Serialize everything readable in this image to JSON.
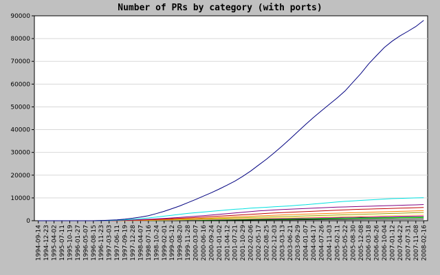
{
  "chart_data": {
    "type": "line",
    "title": "Number of PRs by category (with ports)",
    "xlabel": "",
    "ylabel": "",
    "ylim": [
      0,
      90000
    ],
    "yticks": [
      0,
      10000,
      20000,
      30000,
      40000,
      50000,
      60000,
      70000,
      80000,
      90000
    ],
    "grid": true,
    "legend": "none",
    "categories": [
      "1994-09-14",
      "1994-12-23",
      "1995-04-02",
      "1995-07-11",
      "1995-10-19",
      "1996-01-27",
      "1996-05-07",
      "1996-08-15",
      "1996-11-23",
      "1997-03-03",
      "1997-06-11",
      "1997-09-19",
      "1997-12-28",
      "1998-04-07",
      "1998-07-16",
      "1998-10-24",
      "1999-02-01",
      "1999-05-12",
      "1999-08-20",
      "1999-11-28",
      "2000-03-07",
      "2000-06-16",
      "2000-09-24",
      "2001-01-02",
      "2001-04-12",
      "2001-07-21",
      "2001-10-29",
      "2002-02-06",
      "2002-05-17",
      "2002-08-25",
      "2002-12-03",
      "2003-03-13",
      "2003-06-21",
      "2003-09-29",
      "2004-01-07",
      "2004-04-17",
      "2004-07-26",
      "2004-11-03",
      "2005-02-11",
      "2005-05-22",
      "2005-08-30",
      "2005-12-08",
      "2006-03-18",
      "2006-06-26",
      "2006-10-04",
      "2007-01-12",
      "2007-04-22",
      "2007-07-31",
      "2007-11-08",
      "2008-02-16"
    ],
    "series": [
      {
        "color": "#000080",
        "values": [
          0,
          0,
          0,
          0,
          0,
          0,
          0,
          0,
          100,
          200,
          400,
          700,
          1100,
          1600,
          2200,
          3100,
          4100,
          5300,
          6500,
          7900,
          9300,
          10800,
          12300,
          13900,
          15600,
          17400,
          19500,
          21800,
          24400,
          27000,
          29800,
          32800,
          35900,
          39100,
          42300,
          45400,
          48300,
          51100,
          53900,
          57000,
          60800,
          64600,
          68900,
          72500,
          76100,
          78900,
          81200,
          83200,
          85300,
          88000
        ]
      },
      {
        "color": "#00e0e0",
        "values": [
          0,
          0,
          0,
          0,
          0,
          0,
          0,
          0,
          50,
          100,
          200,
          400,
          600,
          900,
          1200,
          1600,
          2000,
          2400,
          2800,
          3200,
          3500,
          3800,
          4100,
          4400,
          4700,
          5000,
          5200,
          5500,
          5700,
          5900,
          6100,
          6300,
          6500,
          6800,
          7000,
          7300,
          7600,
          7900,
          8200,
          8500,
          8700,
          8900,
          9100,
          9300,
          9500,
          9700,
          9800,
          9900,
          10000,
          10100
        ]
      },
      {
        "color": "#800080",
        "values": [
          0,
          0,
          0,
          0,
          0,
          0,
          0,
          0,
          30,
          60,
          120,
          200,
          300,
          450,
          600,
          800,
          1000,
          1200,
          1450,
          1700,
          1950,
          2200,
          2500,
          2800,
          3100,
          3400,
          3700,
          4000,
          4300,
          4500,
          4700,
          4900,
          5050,
          5200,
          5350,
          5500,
          5650,
          5800,
          5950,
          6050,
          6150,
          6250,
          6350,
          6450,
          6550,
          6650,
          6750,
          6850,
          6950,
          7100
        ]
      },
      {
        "color": "#c00000",
        "values": [
          0,
          0,
          0,
          0,
          0,
          0,
          0,
          0,
          20,
          40,
          80,
          140,
          220,
          320,
          450,
          600,
          750,
          900,
          1050,
          1200,
          1400,
          1600,
          1800,
          2000,
          2200,
          2400,
          2600,
          2800,
          3000,
          3200,
          3400,
          3550,
          3700,
          3850,
          4000,
          4150,
          4300,
          4450,
          4600,
          4750,
          4900,
          5000,
          5100,
          5200,
          5300,
          5400,
          5500,
          5600,
          5700,
          5800
        ]
      },
      {
        "color": "#ff8000",
        "values": [
          0,
          0,
          0,
          0,
          0,
          0,
          0,
          0,
          10,
          20,
          40,
          80,
          130,
          200,
          280,
          380,
          480,
          590,
          700,
          820,
          950,
          1080,
          1220,
          1360,
          1500,
          1650,
          1800,
          1950,
          2100,
          2250,
          2400,
          2550,
          2700,
          2800,
          2900,
          3000,
          3100,
          3200,
          3300,
          3400,
          3500,
          3600,
          3700,
          3800,
          3900,
          4000,
          4100,
          4200,
          4300,
          4400
        ]
      },
      {
        "color": "#a0a000",
        "values": [
          0,
          0,
          0,
          0,
          0,
          0,
          0,
          0,
          10,
          20,
          30,
          60,
          100,
          150,
          210,
          280,
          360,
          440,
          520,
          610,
          700,
          800,
          900,
          1000,
          1100,
          1200,
          1300,
          1400,
          1500,
          1600,
          1700,
          1800,
          1900,
          2000,
          2100,
          2200,
          2300,
          2400,
          2500,
          2600,
          2700,
          2800,
          2900,
          3000,
          3100,
          3200,
          3300,
          3400,
          3500,
          3600
        ]
      },
      {
        "color": "#ffff40",
        "values": [
          0,
          0,
          0,
          0,
          0,
          0,
          0,
          0,
          10,
          20,
          30,
          50,
          80,
          120,
          160,
          210,
          260,
          320,
          380,
          440,
          500,
          570,
          640,
          710,
          780,
          850,
          920,
          990,
          1060,
          1130,
          1200,
          1270,
          1340,
          1410,
          1480,
          1550,
          1620,
          1690,
          1760,
          1830,
          1900,
          1970,
          2040,
          2110,
          2180,
          2250,
          2320,
          2390,
          2460,
          2550
        ]
      },
      {
        "color": "#ff00ff",
        "values": [
          0,
          0,
          0,
          0,
          0,
          0,
          0,
          0,
          5,
          10,
          20,
          40,
          60,
          90,
          120,
          160,
          200,
          250,
          300,
          350,
          400,
          460,
          520,
          580,
          640,
          700,
          760,
          820,
          880,
          940,
          1000,
          1060,
          1120,
          1180,
          1240,
          1300,
          1360,
          1420,
          1480,
          1540,
          1600,
          1660,
          1720,
          1780,
          1840,
          1900,
          1960,
          2020,
          2080,
          2150
        ]
      },
      {
        "color": "#008000",
        "values": [
          0,
          0,
          0,
          0,
          0,
          0,
          0,
          0,
          5,
          10,
          20,
          30,
          50,
          70,
          100,
          130,
          160,
          200,
          240,
          280,
          320,
          360,
          400,
          450,
          500,
          550,
          600,
          650,
          700,
          750,
          800,
          850,
          900,
          950,
          1000,
          1050,
          1100,
          1150,
          1200,
          1250,
          1300,
          1350,
          1400,
          1450,
          1500,
          1550,
          1600,
          1650,
          1700,
          1750
        ]
      },
      {
        "color": "#00c000",
        "values": [
          0,
          0,
          0,
          0,
          0,
          0,
          0,
          0,
          5,
          10,
          15,
          25,
          40,
          55,
          75,
          100,
          125,
          150,
          180,
          210,
          240,
          270,
          300,
          340,
          380,
          420,
          460,
          500,
          540,
          580,
          620,
          660,
          700,
          740,
          780,
          820,
          860,
          900,
          940,
          980,
          1020,
          1060,
          1100,
          1140,
          1180,
          1220,
          1260,
          1300,
          1340,
          1380
        ]
      },
      {
        "color": "#000000",
        "values": [
          0,
          0,
          0,
          0,
          0,
          0,
          0,
          0,
          3,
          6,
          10,
          15,
          25,
          35,
          50,
          65,
          80,
          100,
          120,
          140,
          160,
          180,
          200,
          220,
          240,
          260,
          280,
          300,
          320,
          340,
          360,
          380,
          400,
          420,
          440,
          460,
          480,
          500,
          520,
          540,
          560,
          580,
          600,
          620,
          640,
          660,
          680,
          700,
          720,
          740
        ]
      }
    ]
  }
}
